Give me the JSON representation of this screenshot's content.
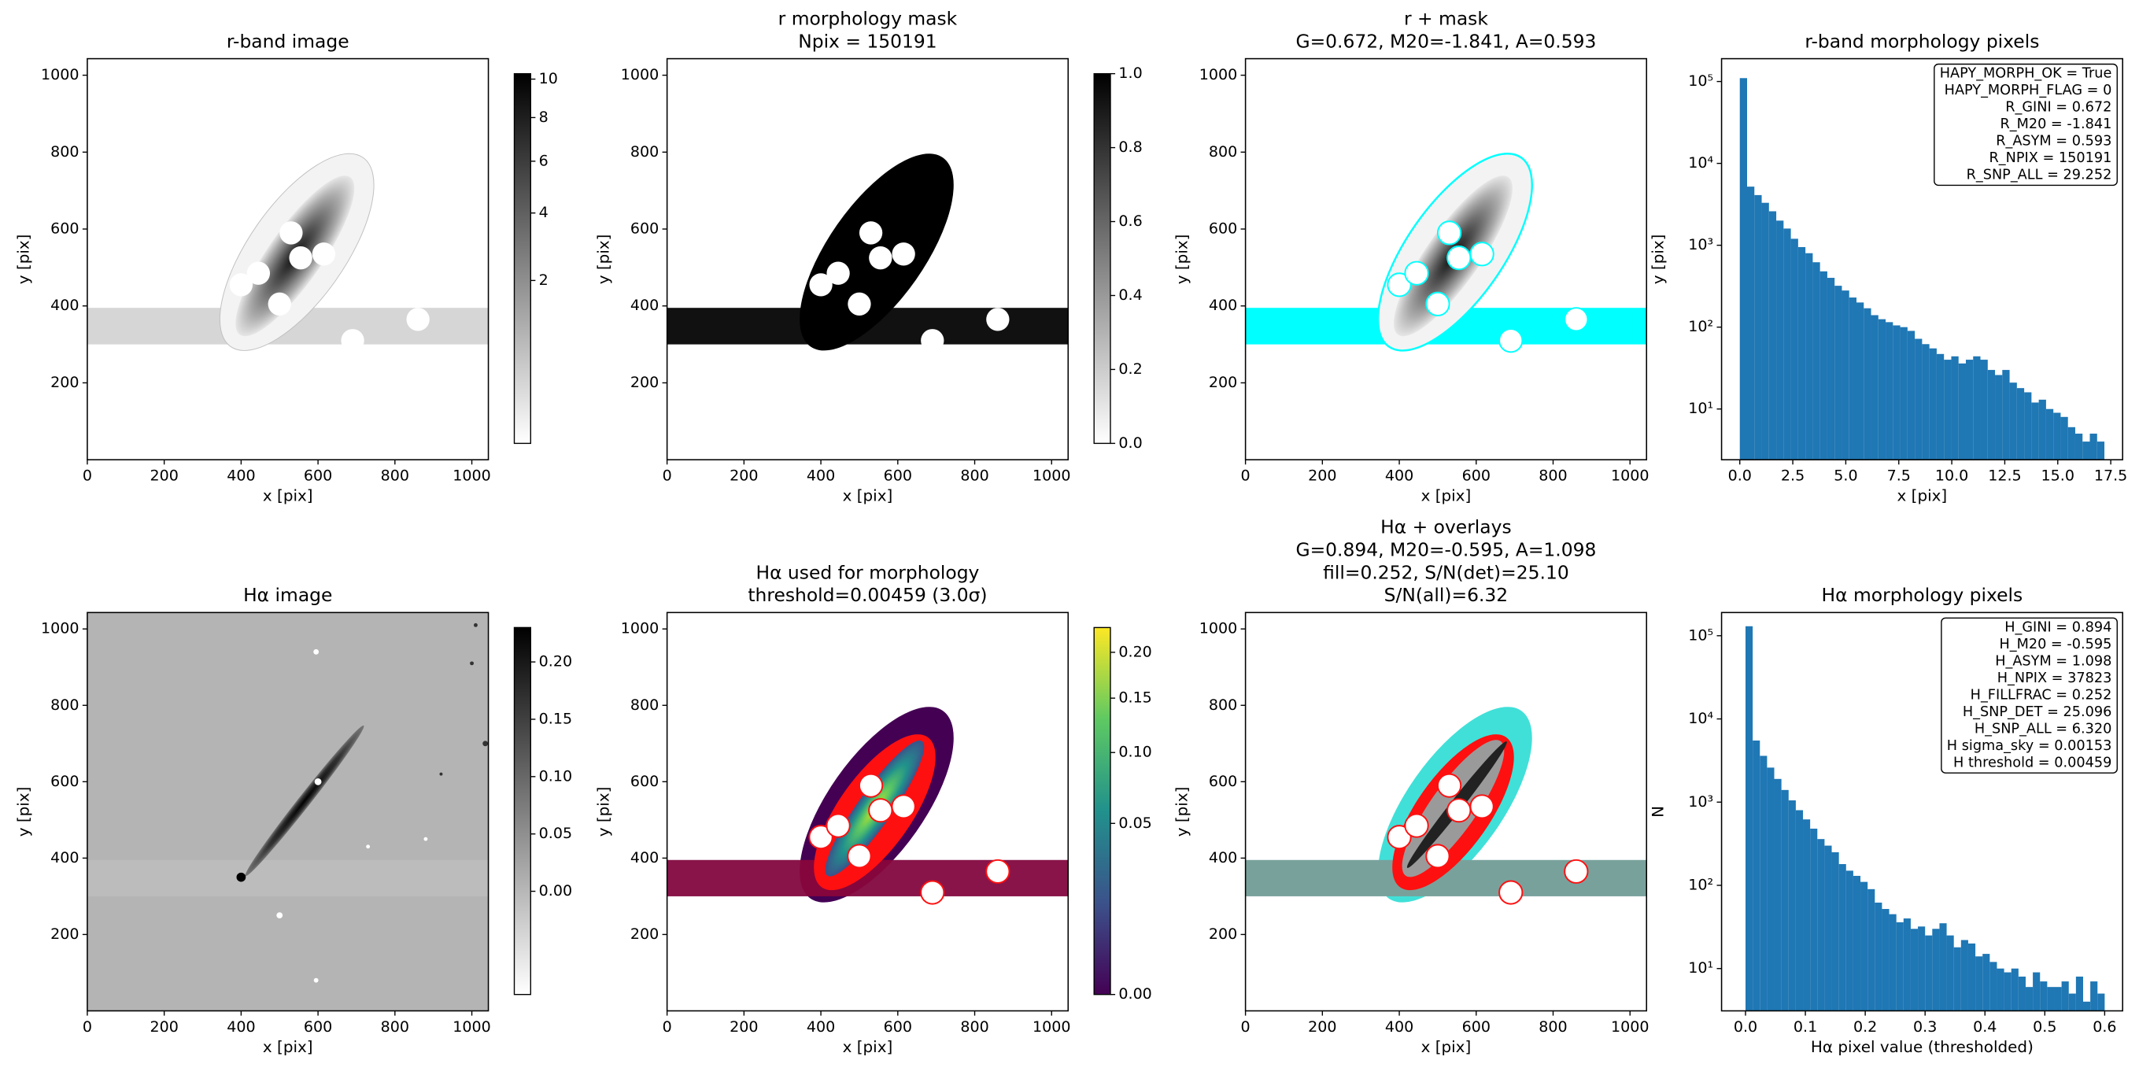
{
  "chart_data": [
    {
      "type": "image",
      "title": [
        "r-band image"
      ],
      "xlabel": "x [pix]",
      "ylabel": "y [pix]",
      "xlim": [
        0,
        1043
      ],
      "ylim": [
        0,
        1043
      ],
      "xticks": [
        0,
        200,
        400,
        600,
        800,
        1000
      ],
      "yticks": [
        200,
        400,
        600,
        800,
        1000
      ],
      "image": "r-band",
      "colorbar": {
        "cmap": "gray_r",
        "scale": "sqrt",
        "lim": [
          0,
          10.3
        ],
        "ticks": [
          2,
          4,
          6,
          8,
          10
        ]
      }
    },
    {
      "type": "image",
      "title": [
        "r morphology mask",
        "Npix = 150191"
      ],
      "xlabel": "x [pix]",
      "ylabel": "y [pix]",
      "xlim": [
        0,
        1043
      ],
      "ylim": [
        0,
        1043
      ],
      "xticks": [
        0,
        200,
        400,
        600,
        800,
        1000
      ],
      "yticks": [
        200,
        400,
        600,
        800,
        1000
      ],
      "image": "mask",
      "colorbar": {
        "cmap": "gray_r",
        "scale": "linear",
        "lim": [
          0,
          1
        ],
        "ticks": [
          {
            "value": 0,
            "label": "0.0"
          },
          {
            "value": 0.2,
            "label": "0.2"
          },
          {
            "value": 0.4,
            "label": "0.4"
          },
          {
            "value": 0.6,
            "label": "0.6"
          },
          {
            "value": 0.8,
            "label": "0.8"
          },
          {
            "value": 1,
            "label": "1.0"
          }
        ]
      }
    },
    {
      "type": "image",
      "title": [
        "r + mask",
        "G=0.672, M20=-1.841, A=0.593"
      ],
      "xlabel": "x [pix]",
      "ylabel": "y [pix]",
      "xlim": [
        0,
        1043
      ],
      "ylim": [
        0,
        1043
      ],
      "xticks": [
        0,
        200,
        400,
        600,
        800,
        1000
      ],
      "yticks": [
        200,
        400,
        600,
        800,
        1000
      ],
      "image": "r-mask-overlay",
      "overlay_color": "#00ffff"
    },
    {
      "type": "histogram",
      "title": [
        "r-band morphology pixels"
      ],
      "xlabel": "x [pix]",
      "ylabel": "y [pix]",
      "bins": [
        0,
        0.344,
        0.688,
        1.032,
        1.376,
        1.72,
        2.064,
        2.408,
        2.752,
        3.096,
        3.44,
        3.784,
        4.128,
        4.472,
        4.816,
        5.16,
        5.504,
        5.848,
        6.192,
        6.536,
        6.88,
        7.224,
        7.568,
        7.912,
        8.256,
        8.6,
        8.944,
        9.288,
        9.632,
        9.976,
        10.32,
        10.664,
        11.008,
        11.352,
        11.696,
        12.04,
        12.384,
        12.728,
        13.072,
        13.416,
        13.76,
        14.104,
        14.448,
        14.792,
        15.136,
        15.48,
        15.824,
        16.168,
        16.512,
        16.856,
        17.2
      ],
      "counts": [
        110000,
        5200,
        4100,
        3300,
        2600,
        2000,
        1600,
        1200,
        950,
        800,
        620,
        480,
        400,
        320,
        280,
        230,
        200,
        170,
        140,
        125,
        115,
        105,
        100,
        90,
        72,
        62,
        55,
        47,
        40,
        44,
        36,
        40,
        44,
        40,
        30,
        26,
        30,
        21,
        18,
        16,
        12,
        13,
        10,
        9,
        8,
        6,
        5,
        4,
        5,
        4
      ],
      "color": "#1f77b4",
      "xlim": [
        -0.86,
        18.06
      ],
      "xticks": [
        {
          "value": 0,
          "label": "0.0"
        },
        {
          "value": 2.5,
          "label": "2.5"
        },
        {
          "value": 5,
          "label": "5.0"
        },
        {
          "value": 7.5,
          "label": "7.5"
        },
        {
          "value": 10,
          "label": "10.0"
        },
        {
          "value": 12.5,
          "label": "12.5"
        },
        {
          "value": 15,
          "label": "15.0"
        },
        {
          "value": 17.5,
          "label": "17.5"
        }
      ],
      "ylog": true,
      "ylim": [
        2.4,
        190000
      ],
      "yticks": [
        {
          "value": 10,
          "label": "10¹"
        },
        {
          "value": 100,
          "label": "10²"
        },
        {
          "value": 1000,
          "label": "10³"
        },
        {
          "value": 10000,
          "label": "10⁴"
        },
        {
          "value": 100000,
          "label": "10⁵"
        }
      ],
      "annotation": [
        "HAPY_MORPH_OK = True",
        "HAPY_MORPH_FLAG = 0",
        "R_GINI = 0.672",
        "R_M20 = -1.841",
        "R_ASYM = 0.593",
        "R_NPIX = 150191",
        "R_SNP_ALL = 29.252"
      ],
      "annotation_loc": "upper right"
    },
    {
      "type": "image",
      "title": [
        "Hα image"
      ],
      "xlabel": "x [pix]",
      "ylabel": "y [pix]",
      "xlim": [
        0,
        1043
      ],
      "ylim": [
        0,
        1043
      ],
      "xticks": [
        0,
        200,
        400,
        600,
        800,
        1000
      ],
      "yticks": [
        200,
        400,
        600,
        800,
        1000
      ],
      "image": "halpha",
      "colorbar": {
        "cmap": "gray_r",
        "scale": "linear",
        "lim": [
          -0.09,
          0.23
        ],
        "ticks": [
          {
            "value": 0,
            "label": "0.00"
          },
          {
            "value": 0.05,
            "label": "0.05"
          },
          {
            "value": 0.1,
            "label": "0.10"
          },
          {
            "value": 0.15,
            "label": "0.15"
          },
          {
            "value": 0.2,
            "label": "0.20"
          }
        ]
      }
    },
    {
      "type": "image",
      "title": [
        "Hα used for morphology",
        "threshold=0.00459 (3.0σ)"
      ],
      "xlabel": "x [pix]",
      "ylabel": "y [pix]",
      "xlim": [
        0,
        1043
      ],
      "ylim": [
        0,
        1043
      ],
      "xticks": [
        0,
        200,
        400,
        600,
        800,
        1000
      ],
      "yticks": [
        200,
        400,
        600,
        800,
        1000
      ],
      "image": "halpha-used",
      "colorbar": {
        "cmap": "viridis",
        "scale": "sqrt",
        "lim": [
          0,
          0.23
        ],
        "ticks": [
          {
            "value": 0,
            "label": "0.00"
          },
          {
            "value": 0.05,
            "label": "0.05"
          },
          {
            "value": 0.1,
            "label": "0.10"
          },
          {
            "value": 0.15,
            "label": "0.15"
          },
          {
            "value": 0.2,
            "label": "0.20"
          }
        ]
      }
    },
    {
      "type": "image",
      "title": [
        "Hα + overlays",
        "G=0.894, M20=-0.595, A=1.098",
        "fill=0.252, S/N(det)=25.10",
        "S/N(all)=6.32"
      ],
      "xlabel": "x [pix]",
      "ylabel": "y [pix]",
      "xlim": [
        0,
        1043
      ],
      "ylim": [
        0,
        1043
      ],
      "xticks": [
        0,
        200,
        400,
        600,
        800,
        1000
      ],
      "yticks": [
        200,
        400,
        600,
        800,
        1000
      ],
      "image": "halpha-overlay",
      "overlay_color": "#40e0d8"
    },
    {
      "type": "histogram",
      "title": [
        "Hα morphology pixels"
      ],
      "xlabel": "Hα pixel value (thresholded)",
      "ylabel": "N",
      "bins": [
        0,
        0.012,
        0.024,
        0.036,
        0.048,
        0.06,
        0.072,
        0.084,
        0.096,
        0.108,
        0.12,
        0.132,
        0.144,
        0.156,
        0.168,
        0.18,
        0.192,
        0.204,
        0.216,
        0.228,
        0.24,
        0.252,
        0.264,
        0.276,
        0.288,
        0.3,
        0.312,
        0.324,
        0.336,
        0.348,
        0.36,
        0.372,
        0.384,
        0.396,
        0.408,
        0.42,
        0.432,
        0.444,
        0.456,
        0.468,
        0.48,
        0.492,
        0.504,
        0.516,
        0.528,
        0.54,
        0.552,
        0.564,
        0.576,
        0.588,
        0.6
      ],
      "counts": [
        130000,
        5500,
        3600,
        2600,
        1900,
        1400,
        1050,
        800,
        620,
        480,
        360,
        300,
        250,
        180,
        150,
        130,
        110,
        90,
        62,
        52,
        45,
        36,
        40,
        30,
        32,
        25,
        30,
        35,
        25,
        18,
        22,
        20,
        14,
        15,
        12,
        10,
        9,
        10,
        8,
        6,
        9,
        7,
        6,
        6,
        7,
        5,
        8,
        4,
        7,
        5
      ],
      "color": "#1f77b4",
      "xlim": [
        -0.04,
        0.63
      ],
      "xticks": [
        {
          "value": 0,
          "label": "0.0"
        },
        {
          "value": 0.1,
          "label": "0.1"
        },
        {
          "value": 0.2,
          "label": "0.2"
        },
        {
          "value": 0.3,
          "label": "0.3"
        },
        {
          "value": 0.4,
          "label": "0.4"
        },
        {
          "value": 0.5,
          "label": "0.5"
        },
        {
          "value": 0.6,
          "label": "0.6"
        }
      ],
      "ylog": true,
      "ylim": [
        3.1,
        190000
      ],
      "yticks": [
        {
          "value": 10,
          "label": "10¹"
        },
        {
          "value": 100,
          "label": "10²"
        },
        {
          "value": 1000,
          "label": "10³"
        },
        {
          "value": 10000,
          "label": "10⁴"
        },
        {
          "value": 100000,
          "label": "10⁵"
        }
      ],
      "annotation": [
        "H_GINI = 0.894",
        "H_M20 = -0.595",
        "H_ASYM = 1.098",
        "H_NPIX = 37823",
        "H_FILLFRAC = 0.252",
        "H_SNP_DET = 25.096",
        "H_SNP_ALL = 6.320",
        "H sigma_sky = 0.00153",
        "H threshold = 0.00459"
      ],
      "annotation_loc": "upper right"
    }
  ]
}
